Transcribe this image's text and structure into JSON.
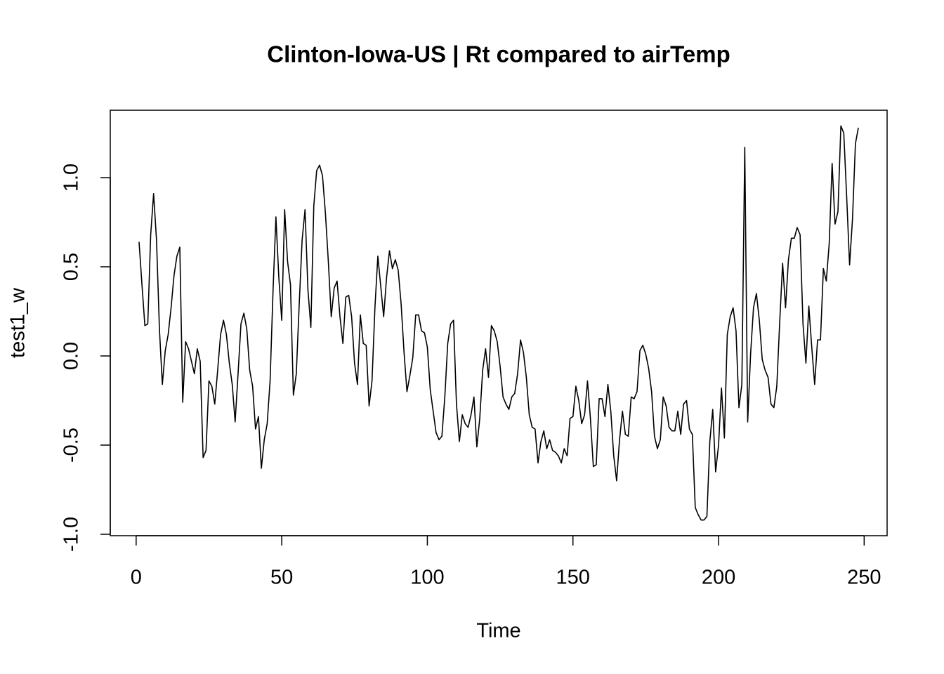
{
  "chart_data": {
    "type": "line",
    "title": "Clinton-Iowa-US | Rt compared to airTemp",
    "x_label": "Time",
    "y_label": "test1_w",
    "color": "#000000",
    "xlim": [
      -8.88,
      257.88
    ],
    "ylim": [
      -1.008,
      1.378
    ],
    "xticks": [
      0,
      50,
      100,
      150,
      200,
      250
    ],
    "yticks": [
      {
        "value": -1,
        "label": "-1.0"
      },
      {
        "value": -0.5,
        "label": "-0.5"
      },
      {
        "value": 0,
        "label": "0.0"
      },
      {
        "value": 0.5,
        "label": "0.5"
      },
      {
        "value": 1,
        "label": "1.0"
      }
    ],
    "x": [
      1,
      2,
      3,
      4,
      5,
      6,
      7,
      8,
      9,
      10,
      11,
      12,
      13,
      14,
      15,
      16,
      17,
      18,
      19,
      20,
      21,
      22,
      23,
      24,
      25,
      26,
      27,
      28,
      29,
      30,
      31,
      32,
      33,
      34,
      35,
      36,
      37,
      38,
      39,
      40,
      41,
      42,
      43,
      44,
      45,
      46,
      47,
      48,
      49,
      50,
      51,
      52,
      53,
      54,
      55,
      56,
      57,
      58,
      59,
      60,
      61,
      62,
      63,
      64,
      65,
      66,
      67,
      68,
      69,
      70,
      71,
      72,
      73,
      74,
      75,
      76,
      77,
      78,
      79,
      80,
      81,
      82,
      83,
      84,
      85,
      86,
      87,
      88,
      89,
      90,
      91,
      92,
      93,
      94,
      95,
      96,
      97,
      98,
      99,
      100,
      101,
      102,
      103,
      104,
      105,
      106,
      107,
      108,
      109,
      110,
      111,
      112,
      113,
      114,
      115,
      116,
      117,
      118,
      119,
      120,
      121,
      122,
      123,
      124,
      125,
      126,
      127,
      128,
      129,
      130,
      131,
      132,
      133,
      134,
      135,
      136,
      137,
      138,
      139,
      140,
      141,
      142,
      143,
      144,
      145,
      146,
      147,
      148,
      149,
      150,
      151,
      152,
      153,
      154,
      155,
      156,
      157,
      158,
      159,
      160,
      161,
      162,
      163,
      164,
      165,
      166,
      167,
      168,
      169,
      170,
      171,
      172,
      173,
      174,
      175,
      176,
      177,
      178,
      179,
      180,
      181,
      182,
      183,
      184,
      185,
      186,
      187,
      188,
      189,
      190,
      191,
      192,
      193,
      194,
      195,
      196,
      197,
      198,
      199,
      200,
      201,
      202,
      203,
      204,
      205,
      206,
      207,
      208,
      209,
      210,
      211,
      212,
      213,
      214,
      215,
      216,
      217,
      218,
      219,
      220,
      221,
      222,
      223,
      224,
      225,
      226,
      227,
      228,
      229,
      230,
      231,
      232,
      233,
      234,
      235,
      236,
      237,
      238,
      239,
      240,
      241,
      242,
      243,
      244,
      245,
      246,
      247,
      248
    ],
    "values": [
      0.64,
      0.4,
      0.17,
      0.18,
      0.68,
      0.91,
      0.65,
      0.15,
      -0.16,
      0.03,
      0.12,
      0.27,
      0.45,
      0.56,
      0.61,
      -0.26,
      0.08,
      0.04,
      -0.03,
      -0.1,
      0.04,
      -0.03,
      -0.57,
      -0.53,
      -0.14,
      -0.17,
      -0.27,
      -0.08,
      0.12,
      0.2,
      0.12,
      -0.04,
      -0.16,
      -0.37,
      -0.1,
      0.18,
      0.24,
      0.15,
      -0.08,
      -0.17,
      -0.41,
      -0.34,
      -0.63,
      -0.47,
      -0.38,
      -0.14,
      0.36,
      0.78,
      0.44,
      0.2,
      0.82,
      0.53,
      0.4,
      -0.22,
      -0.1,
      0.29,
      0.65,
      0.82,
      0.37,
      0.16,
      0.84,
      1.04,
      1.07,
      1.01,
      0.8,
      0.53,
      0.22,
      0.38,
      0.42,
      0.22,
      0.07,
      0.33,
      0.34,
      0.22,
      -0.04,
      -0.16,
      0.23,
      0.07,
      0.06,
      -0.28,
      -0.14,
      0.27,
      0.56,
      0.39,
      0.22,
      0.44,
      0.59,
      0.49,
      0.54,
      0.48,
      0.29,
      0.02,
      -0.2,
      -0.11,
      -0.01,
      0.23,
      0.23,
      0.14,
      0.13,
      0.05,
      -0.19,
      -0.31,
      -0.43,
      -0.47,
      -0.45,
      -0.23,
      0.07,
      0.18,
      0.2,
      -0.27,
      -0.48,
      -0.33,
      -0.38,
      -0.4,
      -0.33,
      -0.23,
      -0.51,
      -0.35,
      -0.08,
      0.04,
      -0.12,
      0.17,
      0.14,
      0.08,
      -0.06,
      -0.23,
      -0.27,
      -0.3,
      -0.23,
      -0.21,
      -0.1,
      0.09,
      0.02,
      -0.12,
      -0.33,
      -0.4,
      -0.41,
      -0.6,
      -0.48,
      -0.42,
      -0.52,
      -0.47,
      -0.53,
      -0.54,
      -0.56,
      -0.6,
      -0.52,
      -0.56,
      -0.35,
      -0.34,
      -0.17,
      -0.25,
      -0.38,
      -0.33,
      -0.14,
      -0.35,
      -0.62,
      -0.61,
      -0.24,
      -0.24,
      -0.34,
      -0.16,
      -0.31,
      -0.56,
      -0.7,
      -0.47,
      -0.31,
      -0.44,
      -0.45,
      -0.23,
      -0.24,
      -0.2,
      0.03,
      0.06,
      0.01,
      -0.07,
      -0.2,
      -0.45,
      -0.52,
      -0.47,
      -0.23,
      -0.28,
      -0.4,
      -0.42,
      -0.42,
      -0.31,
      -0.44,
      -0.27,
      -0.25,
      -0.41,
      -0.44,
      -0.85,
      -0.89,
      -0.92,
      -0.92,
      -0.9,
      -0.48,
      -0.3,
      -0.65,
      -0.5,
      -0.18,
      -0.46,
      0.12,
      0.22,
      0.27,
      0.14,
      -0.29,
      -0.16,
      1.17,
      -0.37,
      0.01,
      0.27,
      0.35,
      0.2,
      -0.02,
      -0.08,
      -0.12,
      -0.27,
      -0.29,
      -0.17,
      0.19,
      0.52,
      0.27,
      0.54,
      0.66,
      0.66,
      0.72,
      0.68,
      0.18,
      -0.04,
      0.28,
      0.05,
      -0.16,
      0.09,
      0.09,
      0.49,
      0.42,
      0.63,
      1.08,
      0.74,
      0.81,
      1.29,
      1.25,
      0.89,
      0.51,
      0.77,
      1.19,
      1.28
    ]
  }
}
